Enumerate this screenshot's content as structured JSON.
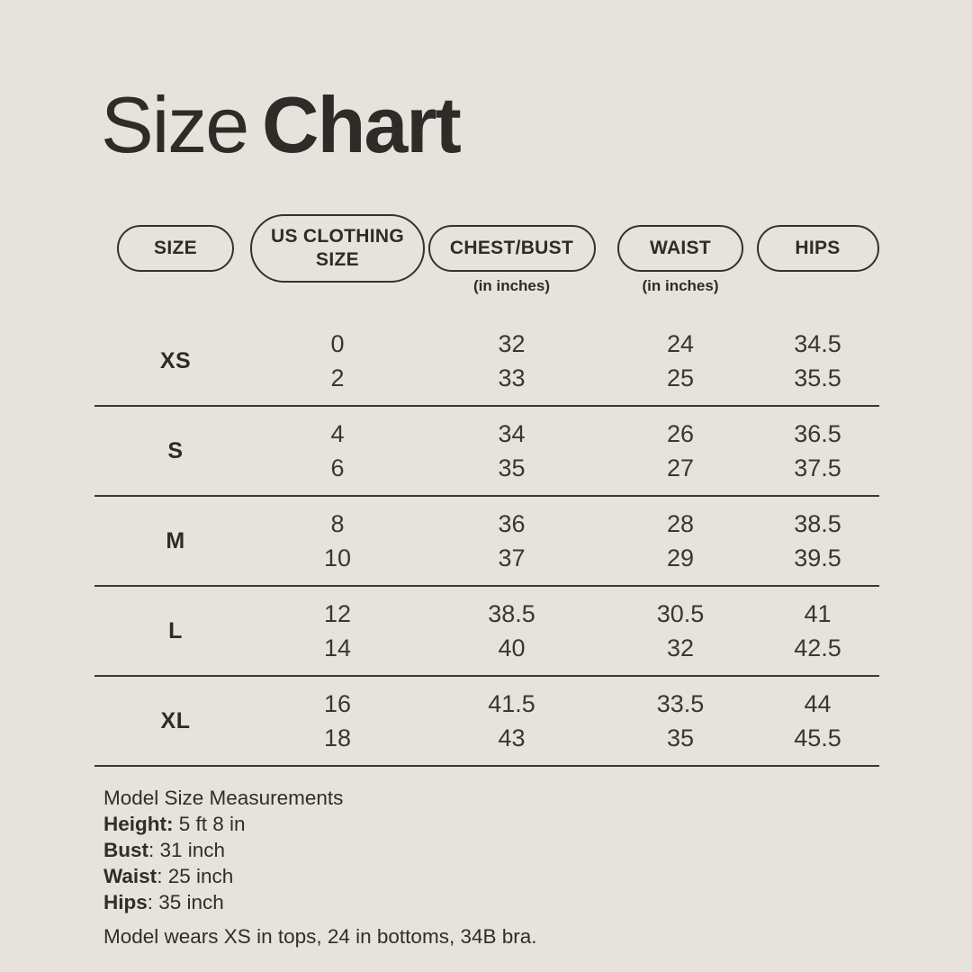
{
  "colors": {
    "background": "#e5e3dc",
    "ink": "#2d2c28",
    "divider_line": "#3a3935"
  },
  "title": {
    "light": "Size",
    "bold": "Chart"
  },
  "table": {
    "headers": [
      {
        "label": "SIZE",
        "sub": ""
      },
      {
        "label": "US CLOTHING SIZE",
        "sub": ""
      },
      {
        "label": "CHEST/BUST",
        "sub": "(in inches)"
      },
      {
        "label": "WAIST",
        "sub": "(in inches)"
      },
      {
        "label": "HIPS",
        "sub": ""
      }
    ],
    "rows": [
      {
        "size": "XS",
        "us": [
          "0",
          "2"
        ],
        "chest": [
          "32",
          "33"
        ],
        "waist": [
          "24",
          "25"
        ],
        "hips": [
          "34.5",
          "35.5"
        ]
      },
      {
        "size": "S",
        "us": [
          "4",
          "6"
        ],
        "chest": [
          "34",
          "35"
        ],
        "waist": [
          "26",
          "27"
        ],
        "hips": [
          "36.5",
          "37.5"
        ]
      },
      {
        "size": "M",
        "us": [
          "8",
          "10"
        ],
        "chest": [
          "36",
          "37"
        ],
        "waist": [
          "28",
          "29"
        ],
        "hips": [
          "38.5",
          "39.5"
        ]
      },
      {
        "size": "L",
        "us": [
          "12",
          "14"
        ],
        "chest": [
          "38.5",
          "40"
        ],
        "waist": [
          "30.5",
          "32"
        ],
        "hips": [
          "41",
          "42.5"
        ]
      },
      {
        "size": "XL",
        "us": [
          "16",
          "18"
        ],
        "chest": [
          "41.5",
          "43"
        ],
        "waist": [
          "33.5",
          "35"
        ],
        "hips": [
          "44",
          "45.5"
        ]
      }
    ]
  },
  "model_info": {
    "heading": "Model Size Measurements",
    "measurements": [
      {
        "label": "Height:",
        "value": " 5 ft 8 in"
      },
      {
        "label": "Bust",
        "value": ": 31 inch"
      },
      {
        "label": "Waist",
        "value": ": 25 inch"
      },
      {
        "label": "Hips",
        "value": ": 35 inch"
      }
    ],
    "note": "Model wears XS in tops, 24 in bottoms, 34B bra."
  }
}
